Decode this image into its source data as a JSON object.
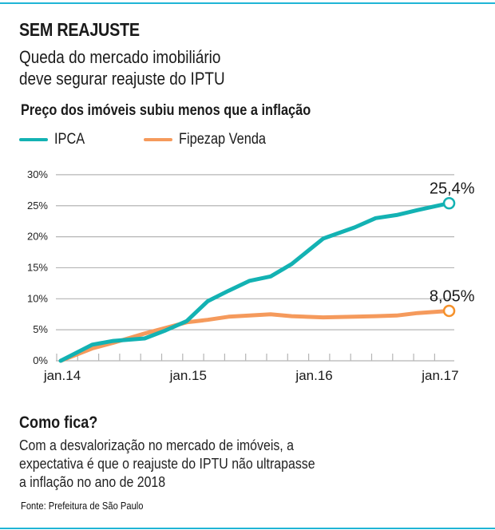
{
  "header": {
    "kicker": "SEM REAJUSTE",
    "subtitle_lines": [
      "Queda do mercado imobiliário",
      "deve segurar reajuste do IPTU"
    ]
  },
  "colors": {
    "accent_rule": "#1fb5d6",
    "ipca": "#13b2b3",
    "fipezap": "#f59a5c",
    "fipezap_marker": "#f5912b",
    "grid": "#b5b5b5"
  },
  "chart_data": {
    "type": "line",
    "title": "Preço dos imóveis subiu menos que a inflação",
    "xlabel": "",
    "ylabel": "",
    "ylim": [
      0,
      30
    ],
    "yticks": [
      0,
      5,
      10,
      15,
      20,
      25,
      30
    ],
    "ytick_labels": [
      "0%",
      "5%",
      "10%",
      "15%",
      "20%",
      "25%",
      "30%"
    ],
    "xlim_months": [
      0,
      37
    ],
    "xtick_months": [
      0,
      12,
      24,
      36
    ],
    "xtick_labels": [
      "jan.14",
      "jan.15",
      "jan.16",
      "jan.17"
    ],
    "minor_tick_every_months": 2,
    "grid": true,
    "legend": "top-left",
    "series": [
      {
        "name": "IPCA",
        "color_key": "ipca",
        "x_months": [
          0,
          3,
          5,
          8,
          10,
          12,
          14,
          16,
          18,
          20,
          22,
          25,
          28,
          30,
          32,
          34,
          37
        ],
        "values": [
          0,
          2.6,
          3.2,
          3.6,
          4.9,
          6.4,
          9.6,
          11.3,
          12.9,
          13.6,
          15.6,
          19.7,
          21.5,
          23.0,
          23.5,
          24.3,
          25.4
        ],
        "end_label": "25,4%"
      },
      {
        "name": "Fipezap Venda",
        "color_key": "fipezap",
        "x_months": [
          0,
          3,
          5,
          8,
          10,
          12,
          14,
          16,
          18,
          20,
          22,
          25,
          28,
          30,
          32,
          34,
          37
        ],
        "values": [
          0,
          2.0,
          2.9,
          4.4,
          5.3,
          6.2,
          6.6,
          7.1,
          7.3,
          7.5,
          7.2,
          7.0,
          7.1,
          7.2,
          7.3,
          7.7,
          8.05
        ],
        "end_label": "8,05%"
      }
    ]
  },
  "footer": {
    "heading": "Como fica?",
    "text_lines": [
      "Com a desvalorização no mercado de imóveis, a",
      "expectativa é que o reajuste do IPTU não ultrapasse",
      "a inflação no ano de 2018"
    ],
    "source": "Fonte: Prefeitura de São Paulo"
  }
}
